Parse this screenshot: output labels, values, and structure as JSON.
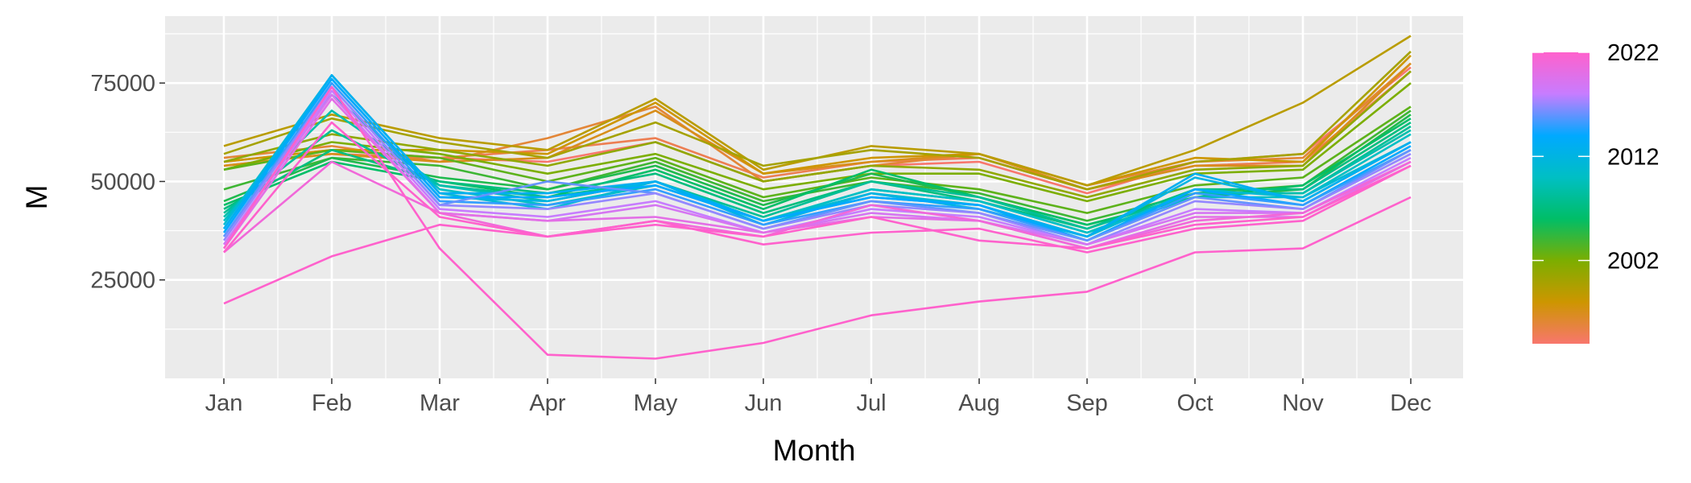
{
  "chart_data": {
    "type": "line",
    "xlabel": "Month",
    "ylabel": "M",
    "categories": [
      "Jan",
      "Feb",
      "Mar",
      "Apr",
      "May",
      "Jun",
      "Jul",
      "Aug",
      "Sep",
      "Oct",
      "Nov",
      "Dec"
    ],
    "ylim": [
      0,
      92000
    ],
    "y_ticks": [
      25000,
      50000,
      75000
    ],
    "y_tick_labels": [
      "25000",
      "50000",
      "75000"
    ],
    "grid": true,
    "legend": {
      "type": "colorbar",
      "placement": "right",
      "ticks": [
        2002,
        2012,
        2022
      ],
      "tick_labels": [
        "2002",
        "2012",
        "2022"
      ],
      "range": [
        1994,
        2022
      ],
      "gradient_colors": [
        "#f8766d",
        "#cd9600",
        "#7cae00",
        "#00be67",
        "#00bfc4",
        "#00a9ff",
        "#c77cff",
        "#ff61cc"
      ]
    },
    "series": [
      {
        "year": 1994,
        "values": [
          55000,
          58000,
          56000,
          55000,
          60000,
          50000,
          54000,
          55000,
          47000,
          55000,
          57000,
          79000
        ]
      },
      {
        "year": 1995,
        "values": [
          54000,
          57000,
          56000,
          58000,
          61000,
          51000,
          55000,
          56000,
          48000,
          54000,
          55000,
          78000
        ]
      },
      {
        "year": 1996,
        "values": [
          56000,
          59000,
          55000,
          61000,
          69000,
          50000,
          54000,
          57000,
          49000,
          55000,
          56000,
          80000
        ]
      },
      {
        "year": 1997,
        "values": [
          54000,
          57000,
          55000,
          56000,
          68000,
          52000,
          55000,
          57000,
          48000,
          54000,
          54000,
          80000
        ]
      },
      {
        "year": 1998,
        "values": [
          55000,
          58000,
          58000,
          57000,
          70000,
          52000,
          56000,
          57000,
          49000,
          56000,
          55000,
          82000
        ]
      },
      {
        "year": 1999,
        "values": [
          59000,
          67000,
          61000,
          58000,
          71000,
          53000,
          59000,
          57000,
          49000,
          58000,
          70000,
          87000
        ]
      },
      {
        "year": 2000,
        "values": [
          57000,
          66000,
          60000,
          56000,
          65000,
          54000,
          58000,
          56000,
          48000,
          55000,
          57000,
          83000
        ]
      },
      {
        "year": 2001,
        "values": [
          55000,
          62000,
          58000,
          54000,
          60000,
          50000,
          54000,
          53000,
          46000,
          53000,
          54000,
          78000
        ]
      },
      {
        "year": 2002,
        "values": [
          53000,
          60000,
          57000,
          52000,
          57000,
          48000,
          52000,
          52000,
          45000,
          52000,
          53000,
          75000
        ]
      },
      {
        "year": 2003,
        "values": [
          53000,
          58000,
          56000,
          50000,
          56000,
          46000,
          51000,
          48000,
          42000,
          49000,
          51000,
          69000
        ]
      },
      {
        "year": 2004,
        "values": [
          48000,
          56000,
          54000,
          48000,
          55000,
          45000,
          50000,
          47000,
          40000,
          47000,
          49000,
          68000
        ]
      },
      {
        "year": 2005,
        "values": [
          45000,
          56000,
          51000,
          48000,
          54000,
          44000,
          52000,
          46000,
          39000,
          46000,
          48000,
          67000
        ]
      },
      {
        "year": 2006,
        "values": [
          44000,
          55000,
          50000,
          46000,
          53000,
          43000,
          53000,
          46000,
          39000,
          46000,
          49000,
          66000
        ]
      },
      {
        "year": 2007,
        "values": [
          43000,
          58000,
          50000,
          47000,
          52000,
          42000,
          50000,
          45000,
          38000,
          48000,
          48000,
          65000
        ]
      },
      {
        "year": 2008,
        "values": [
          42000,
          63000,
          49000,
          46000,
          50000,
          41000,
          50000,
          46000,
          38000,
          47000,
          47000,
          64000
        ]
      },
      {
        "year": 2009,
        "values": [
          41000,
          68000,
          49000,
          45000,
          50000,
          40000,
          48000,
          45000,
          37000,
          47000,
          47000,
          63000
        ]
      },
      {
        "year": 2010,
        "values": [
          40000,
          72000,
          48000,
          44000,
          49000,
          40000,
          48000,
          45000,
          37000,
          46000,
          46000,
          62000
        ]
      },
      {
        "year": 2011,
        "values": [
          39000,
          77000,
          47000,
          43000,
          50000,
          40000,
          47000,
          44000,
          36000,
          48000,
          46000,
          60000
        ]
      },
      {
        "year": 2012,
        "values": [
          38000,
          76000,
          46000,
          45000,
          50000,
          39000,
          47000,
          43000,
          36000,
          51000,
          45000,
          60000
        ]
      },
      {
        "year": 2013,
        "values": [
          38000,
          77000,
          47000,
          47000,
          50000,
          40000,
          46000,
          44000,
          36000,
          52000,
          45000,
          60000
        ]
      },
      {
        "year": 2014,
        "values": [
          37000,
          76000,
          46000,
          46000,
          49000,
          40000,
          46000,
          44000,
          35000,
          48000,
          44000,
          59000
        ]
      },
      {
        "year": 2015,
        "values": [
          36000,
          75000,
          45000,
          44000,
          48000,
          39000,
          45000,
          43000,
          35000,
          47000,
          44000,
          58000
        ]
      },
      {
        "year": 2016,
        "values": [
          36000,
          74000,
          44000,
          50000,
          47000,
          38000,
          45000,
          42000,
          35000,
          46000,
          43000,
          58000
        ]
      },
      {
        "year": 2017,
        "values": [
          35000,
          74000,
          44000,
          43000,
          47000,
          38000,
          44000,
          42000,
          34000,
          45000,
          43000,
          57000
        ]
      },
      {
        "year": 2018,
        "values": [
          34000,
          73000,
          43000,
          41000,
          45000,
          37000,
          43000,
          41000,
          34000,
          43000,
          42000,
          56000
        ]
      },
      {
        "year": 2019,
        "values": [
          34000,
          72000,
          42000,
          40000,
          44000,
          37000,
          42000,
          40000,
          34000,
          42000,
          42000,
          55000
        ]
      },
      {
        "year": 2020,
        "values": [
          33000,
          71000,
          42000,
          40000,
          41000,
          37000,
          41000,
          40000,
          33000,
          41000,
          41000,
          55000
        ]
      },
      {
        "year": 2021,
        "values": [
          32000,
          55000,
          42000,
          36000,
          40000,
          36000,
          44000,
          40000,
          33000,
          40000,
          42000,
          55000
        ]
      },
      {
        "year": 2022,
        "values": [
          32000,
          65000,
          41000,
          36000,
          39000,
          36000,
          41000,
          35000,
          33000,
          39000,
          41000,
          54000
        ]
      },
      {
        "year": 2023,
        "values": [
          33000,
          74000,
          33000,
          6000,
          5000,
          9000,
          16000,
          19500,
          22000,
          32000,
          33000,
          46000
        ]
      },
      {
        "year": 2024,
        "values": [
          19000,
          31000,
          39000,
          36000,
          40000,
          34000,
          37000,
          38000,
          32000,
          38000,
          40000,
          54000
        ]
      }
    ]
  }
}
